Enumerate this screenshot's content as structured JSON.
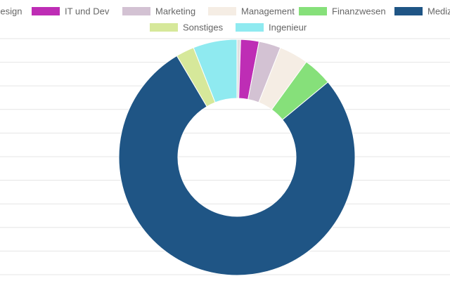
{
  "chart_data": {
    "type": "doughnut",
    "title": "",
    "legend_position": "top",
    "series": [
      {
        "label": "Design",
        "value": 0.5,
        "color": "#e0e0e0"
      },
      {
        "label": "IT und Dev",
        "value": 2.5,
        "color": "#be2db5"
      },
      {
        "label": "Marketing",
        "value": 3.0,
        "color": "#d3c2d3"
      },
      {
        "label": "Management",
        "value": 4.0,
        "color": "#f5ede4"
      },
      {
        "label": "Finanzwesen",
        "value": 4.0,
        "color": "#86e07a"
      },
      {
        "label": "Medizin u",
        "value": 77.5,
        "color": "#1f5585"
      },
      {
        "label": "Sonstiges",
        "value": 2.5,
        "color": "#d6e89a"
      },
      {
        "label": "Ingenieur",
        "value": 6.0,
        "color": "#8feaf0"
      }
    ]
  }
}
